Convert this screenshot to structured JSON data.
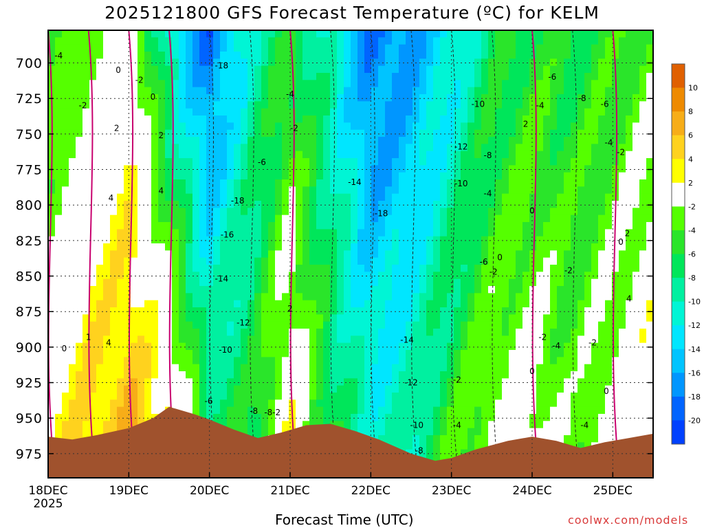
{
  "title": "2025121800 GFS Forecast Temperature (ºC) for KELM",
  "x_axis_title": "Forecast Time (UTC)",
  "credit": "coolwx.com/models",
  "colors": {
    "terrain": "#a0522d",
    "freezing_line": "#c8006e",
    "plot_border": "#000000"
  },
  "chart_data": {
    "type": "heatmap",
    "title": "2025121800 GFS Forecast Temperature (ºC) for KELM",
    "xlabel": "Forecast Time (UTC)",
    "ylabel": "",
    "x_ticks": [
      "18DEC",
      "19DEC",
      "20DEC",
      "21DEC",
      "22DEC",
      "23DEC",
      "24DEC",
      "25DEC"
    ],
    "x_year_label": "2025",
    "x_range_days": [
      0,
      7.5
    ],
    "y_ticks": [
      700,
      725,
      750,
      775,
      800,
      825,
      850,
      875,
      900,
      925,
      950,
      975
    ],
    "y_range_hpa": [
      677,
      992
    ],
    "y_inverted": true,
    "grid": true,
    "colorbar": {
      "placement": "right",
      "tick_labels": [
        "10",
        "8",
        "6",
        "4",
        "2",
        "-2",
        "-4",
        "-6",
        "-8",
        "-10",
        "-12",
        "-14",
        "-16",
        "-18",
        "-20"
      ],
      "bins": [
        {
          "range": [
            10,
            12
          ],
          "color": "#e06000"
        },
        {
          "range": [
            8,
            10
          ],
          "color": "#ee8a00"
        },
        {
          "range": [
            6,
            8
          ],
          "color": "#f7ad18"
        },
        {
          "range": [
            4,
            6
          ],
          "color": "#ffd21e"
        },
        {
          "range": [
            2,
            4
          ],
          "color": "#ffff00"
        },
        {
          "range": [
            -2,
            2
          ],
          "color": "#ffffff"
        },
        {
          "range": [
            -4,
            -2
          ],
          "color": "#55ff00"
        },
        {
          "range": [
            -6,
            -4
          ],
          "color": "#2ae52a"
        },
        {
          "range": [
            -8,
            -6
          ],
          "color": "#00e65a"
        },
        {
          "range": [
            -10,
            -8
          ],
          "color": "#00f0a0"
        },
        {
          "range": [
            -12,
            -10
          ],
          "color": "#00f5d5"
        },
        {
          "range": [
            -14,
            -12
          ],
          "color": "#00e6ff"
        },
        {
          "range": [
            -16,
            -14
          ],
          "color": "#00c4ff"
        },
        {
          "range": [
            -18,
            -16
          ],
          "color": "#0096ff"
        },
        {
          "range": [
            -20,
            -18
          ],
          "color": "#0064ff"
        },
        {
          "range": [
            -22,
            -20
          ],
          "color": "#0041ff"
        }
      ]
    },
    "temperature_profiles": [
      {
        "day": 0.0,
        "t_700": -5,
        "t_975": 2
      },
      {
        "day": 0.5,
        "t_700": -2,
        "t_975": 5
      },
      {
        "day": 1.0,
        "t_700": 1,
        "t_975": 6
      },
      {
        "day": 1.5,
        "t_700": -10,
        "t_975": 4
      },
      {
        "day": 2.0,
        "t_700": -18,
        "t_975": -6
      },
      {
        "day": 2.5,
        "t_700": -10,
        "t_975": -6
      },
      {
        "day": 3.0,
        "t_700": -5,
        "t_975": 2
      },
      {
        "day": 3.5,
        "t_700": -10,
        "t_975": -6
      },
      {
        "day": 4.0,
        "t_700": -18,
        "t_975": -10
      },
      {
        "day": 4.5,
        "t_700": -16,
        "t_975": -9
      },
      {
        "day": 5.0,
        "t_700": -12,
        "t_975": -4
      },
      {
        "day": 5.5,
        "t_700": -7,
        "t_975": -1
      },
      {
        "day": 6.0,
        "t_700": -5,
        "t_975": 0
      },
      {
        "day": 6.5,
        "t_700": -6,
        "t_975": -3
      },
      {
        "day": 7.0,
        "t_700": -5,
        "t_975": 0
      },
      {
        "day": 7.5,
        "t_700": -3,
        "t_975": 3
      }
    ],
    "contour_labels": [
      {
        "day": 0.13,
        "hpa": 695,
        "text": "-4"
      },
      {
        "day": 0.43,
        "hpa": 730,
        "text": "-2"
      },
      {
        "day": 0.87,
        "hpa": 705,
        "text": "0"
      },
      {
        "day": 1.13,
        "hpa": 712,
        "text": "-2"
      },
      {
        "day": 1.3,
        "hpa": 724,
        "text": "0"
      },
      {
        "day": 0.85,
        "hpa": 746,
        "text": "2"
      },
      {
        "day": 1.4,
        "hpa": 751,
        "text": "2"
      },
      {
        "day": 0.78,
        "hpa": 795,
        "text": "4"
      },
      {
        "day": 1.4,
        "hpa": 790,
        "text": "4"
      },
      {
        "day": 2.15,
        "hpa": 702,
        "text": "-18"
      },
      {
        "day": 2.35,
        "hpa": 797,
        "text": "-18"
      },
      {
        "day": 2.22,
        "hpa": 821,
        "text": "-16"
      },
      {
        "day": 2.15,
        "hpa": 852,
        "text": "-14"
      },
      {
        "day": 2.42,
        "hpa": 883,
        "text": "-12"
      },
      {
        "day": 2.2,
        "hpa": 902,
        "text": "-10"
      },
      {
        "day": 1.99,
        "hpa": 938,
        "text": "-6"
      },
      {
        "day": 2.55,
        "hpa": 945,
        "text": "-8"
      },
      {
        "day": 2.73,
        "hpa": 946,
        "text": "-8"
      },
      {
        "day": 3.0,
        "hpa": 722,
        "text": "-4"
      },
      {
        "day": 3.05,
        "hpa": 746,
        "text": "-2"
      },
      {
        "day": 2.65,
        "hpa": 770,
        "text": "-6"
      },
      {
        "day": 2.83,
        "hpa": 946,
        "text": "-2"
      },
      {
        "day": 3.0,
        "hpa": 873,
        "text": "2"
      },
      {
        "day": 3.8,
        "hpa": 784,
        "text": "-14"
      },
      {
        "day": 4.13,
        "hpa": 806,
        "text": "-18"
      },
      {
        "day": 4.45,
        "hpa": 895,
        "text": "-14"
      },
      {
        "day": 4.5,
        "hpa": 925,
        "text": "-12"
      },
      {
        "day": 4.57,
        "hpa": 955,
        "text": "-10"
      },
      {
        "day": 4.6,
        "hpa": 973,
        "text": "-8"
      },
      {
        "day": 5.07,
        "hpa": 923,
        "text": "-2"
      },
      {
        "day": 5.07,
        "hpa": 955,
        "text": "-4"
      },
      {
        "day": 5.33,
        "hpa": 729,
        "text": "-10"
      },
      {
        "day": 5.12,
        "hpa": 759,
        "text": "-12"
      },
      {
        "day": 5.45,
        "hpa": 765,
        "text": "-8"
      },
      {
        "day": 5.12,
        "hpa": 785,
        "text": "-10"
      },
      {
        "day": 5.45,
        "hpa": 792,
        "text": "-4"
      },
      {
        "day": 5.4,
        "hpa": 840,
        "text": "-6"
      },
      {
        "day": 5.52,
        "hpa": 847,
        "text": "-2"
      },
      {
        "day": 5.6,
        "hpa": 837,
        "text": "0"
      },
      {
        "day": 6.0,
        "hpa": 804,
        "text": "0"
      },
      {
        "day": 6.0,
        "hpa": 917,
        "text": "0"
      },
      {
        "day": 5.92,
        "hpa": 743,
        "text": "2"
      },
      {
        "day": 6.1,
        "hpa": 730,
        "text": "-4"
      },
      {
        "day": 6.25,
        "hpa": 710,
        "text": "-6"
      },
      {
        "day": 6.62,
        "hpa": 725,
        "text": "-8"
      },
      {
        "day": 6.9,
        "hpa": 729,
        "text": "-6"
      },
      {
        "day": 6.95,
        "hpa": 756,
        "text": "-4"
      },
      {
        "day": 7.1,
        "hpa": 763,
        "text": "-2"
      },
      {
        "day": 6.45,
        "hpa": 846,
        "text": "-2"
      },
      {
        "day": 6.13,
        "hpa": 893,
        "text": "-2"
      },
      {
        "day": 6.3,
        "hpa": 899,
        "text": "-4"
      },
      {
        "day": 6.75,
        "hpa": 897,
        "text": "-2"
      },
      {
        "day": 6.65,
        "hpa": 955,
        "text": "-4"
      },
      {
        "day": 6.92,
        "hpa": 931,
        "text": "0"
      },
      {
        "day": 7.1,
        "hpa": 826,
        "text": "0"
      },
      {
        "day": 7.18,
        "hpa": 820,
        "text": "2"
      },
      {
        "day": 7.2,
        "hpa": 866,
        "text": "4"
      },
      {
        "day": 0.5,
        "hpa": 893,
        "text": "1"
      },
      {
        "day": 0.75,
        "hpa": 897,
        "text": "4"
      },
      {
        "day": 0.2,
        "hpa": 901,
        "text": "0"
      }
    ],
    "surface_pressure": [
      {
        "day": 0.0,
        "hpa": 963
      },
      {
        "day": 0.3,
        "hpa": 965
      },
      {
        "day": 0.6,
        "hpa": 962
      },
      {
        "day": 1.0,
        "hpa": 957
      },
      {
        "day": 1.3,
        "hpa": 950
      },
      {
        "day": 1.5,
        "hpa": 942
      },
      {
        "day": 1.8,
        "hpa": 947
      },
      {
        "day": 2.0,
        "hpa": 951
      },
      {
        "day": 2.3,
        "hpa": 958
      },
      {
        "day": 2.6,
        "hpa": 964
      },
      {
        "day": 2.9,
        "hpa": 960
      },
      {
        "day": 3.2,
        "hpa": 955
      },
      {
        "day": 3.5,
        "hpa": 954
      },
      {
        "day": 3.8,
        "hpa": 959
      },
      {
        "day": 4.1,
        "hpa": 965
      },
      {
        "day": 4.5,
        "hpa": 975
      },
      {
        "day": 4.8,
        "hpa": 980
      },
      {
        "day": 5.0,
        "hpa": 978
      },
      {
        "day": 5.3,
        "hpa": 972
      },
      {
        "day": 5.7,
        "hpa": 966
      },
      {
        "day": 6.0,
        "hpa": 963
      },
      {
        "day": 6.3,
        "hpa": 966
      },
      {
        "day": 6.6,
        "hpa": 971
      },
      {
        "day": 6.9,
        "hpa": 967
      },
      {
        "day": 7.2,
        "hpa": 964
      },
      {
        "day": 7.5,
        "hpa": 961
      }
    ]
  }
}
